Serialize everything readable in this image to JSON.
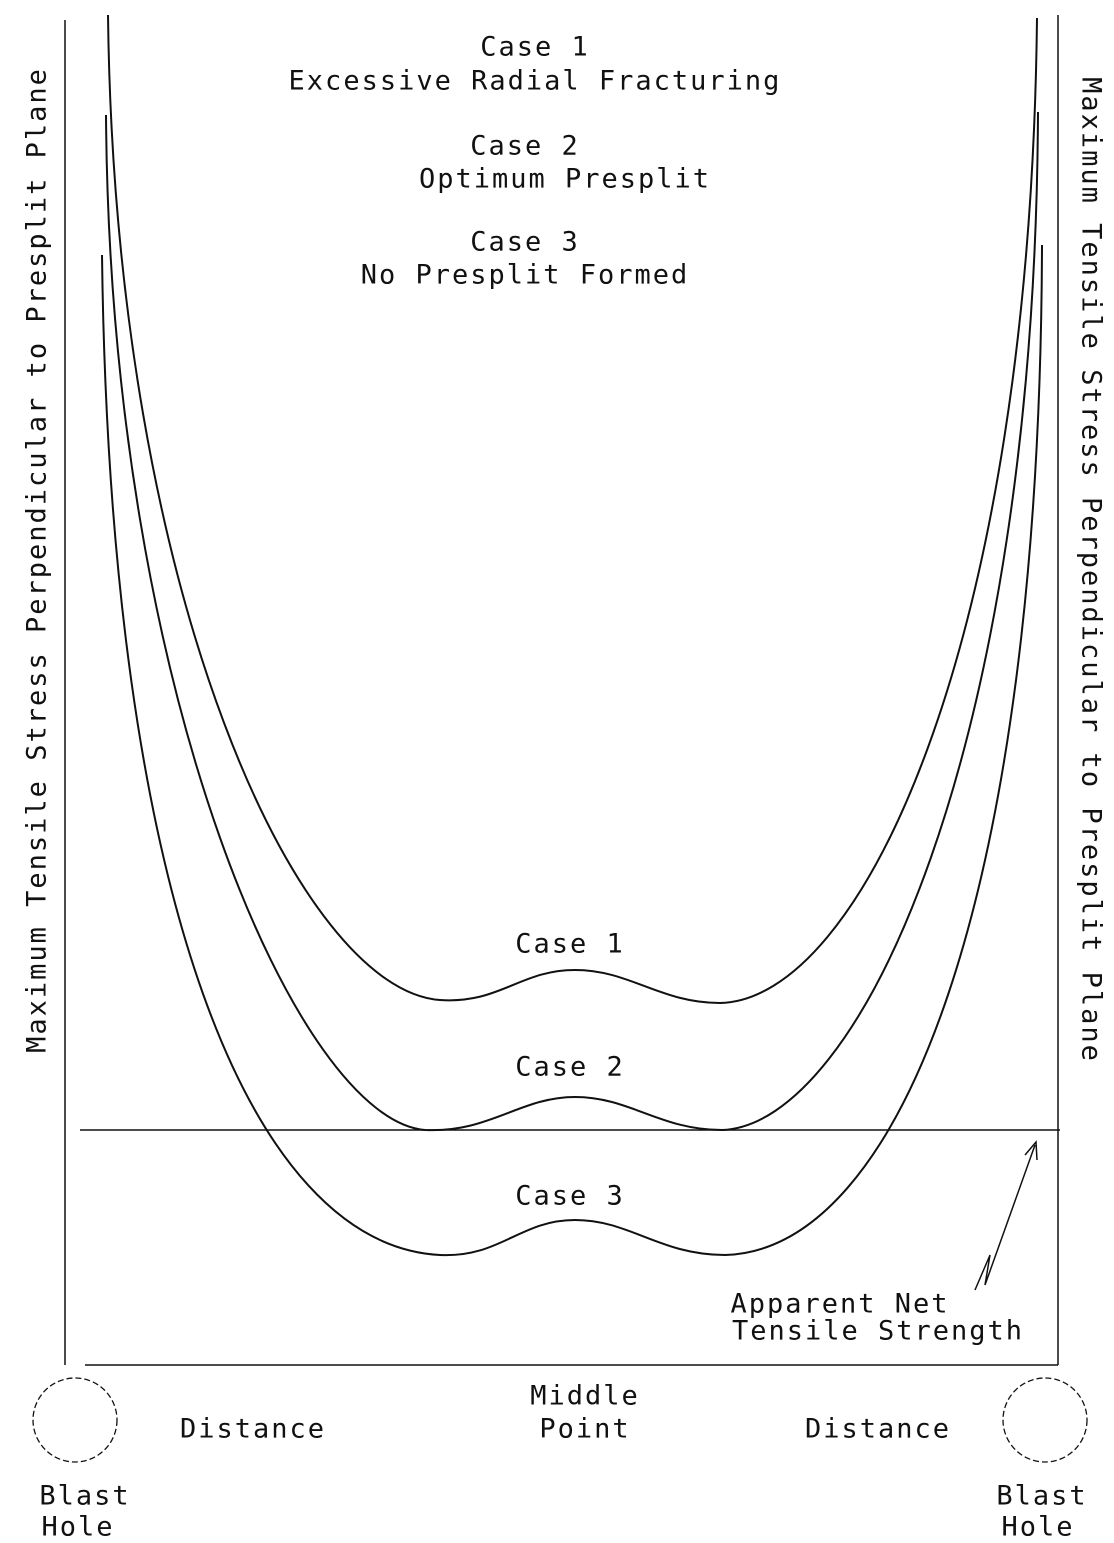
{
  "legend": [
    {
      "case": "Case 1",
      "description": "Excessive Radial Fracturing"
    },
    {
      "case": "Case 2",
      "description": "Optimum Presplit"
    },
    {
      "case": "Case 3",
      "description": "No Presplit Formed"
    }
  ],
  "curve_labels": [
    "Case 1",
    "Case 2",
    "Case 3"
  ],
  "y_axis_left": "Maximum Tensile Stress Perpendicular to Presplit Plane",
  "y_axis_right": "Maximum Tensile Stress Perpendicular to Presplit Plane",
  "threshold_label": [
    "Apparent Net",
    "Tensile Strength"
  ],
  "x_axis": {
    "left": "Distance",
    "middle": [
      "Middle",
      "Point"
    ],
    "right": "Distance"
  },
  "blast_holes": [
    [
      "Blast",
      "Hole"
    ],
    [
      "Blast",
      "Hole"
    ]
  ]
}
